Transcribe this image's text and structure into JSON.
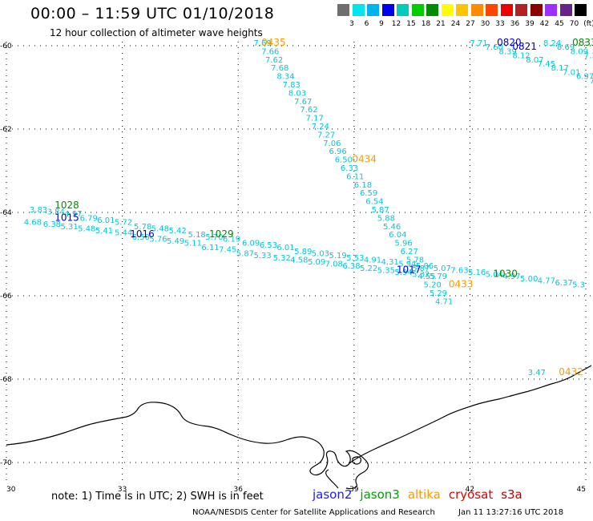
{
  "title": "00:00 – 11:59 UTC 01/10/2018",
  "subtitle": "12 hour collection of altimeter wave heights",
  "legend": {
    "unit": "(ft)",
    "colors": [
      "#6e6e6e",
      "#00e5ee",
      "#00b2ee",
      "#0000ee",
      "#00ccbb",
      "#00cd00",
      "#008b00",
      "#ffff00",
      "#ffc400",
      "#ff8c00",
      "#ff4500",
      "#ee0000",
      "#b22222",
      "#8b0000",
      "#9b30ff",
      "#68228b",
      "#000000"
    ],
    "labels": [
      "3",
      "6",
      "9",
      "12",
      "15",
      "18",
      "21",
      "24",
      "27",
      "30",
      "33",
      "36",
      "39",
      "42",
      "45",
      "70"
    ]
  },
  "map": {
    "lat_labels": [
      "-60",
      "-62",
      "-64",
      "-66",
      "-68",
      "-70"
    ],
    "lon_labels": [
      "30",
      "33",
      "36",
      "39",
      "42",
      "45"
    ]
  },
  "tracks": [
    {
      "satellite": "altika",
      "color": "#00c8dc",
      "points": [
        {
          "lon": 36.4,
          "lat": -60.0,
          "swh": "7.69"
        },
        {
          "lon": 36.6,
          "lat": -60.2,
          "swh": "7.66"
        },
        {
          "lon": 36.7,
          "lat": -60.4,
          "swh": "7.62"
        },
        {
          "lon": 36.85,
          "lat": -60.6,
          "swh": "7.68"
        },
        {
          "lon": 37.0,
          "lat": -60.8,
          "swh": "8.34"
        },
        {
          "lon": 37.15,
          "lat": -61.0,
          "swh": "7.83"
        },
        {
          "lon": 37.3,
          "lat": -61.2,
          "swh": "8.03"
        },
        {
          "lon": 37.45,
          "lat": -61.4,
          "swh": "7.67"
        },
        {
          "lon": 37.6,
          "lat": -61.6,
          "swh": "7.62"
        },
        {
          "lon": 37.75,
          "lat": -61.8,
          "swh": "7.17"
        },
        {
          "lon": 37.9,
          "lat": -62.0,
          "swh": "7.24"
        },
        {
          "lon": 38.05,
          "lat": -62.2,
          "swh": "7.27"
        },
        {
          "lon": 38.2,
          "lat": -62.4,
          "swh": "7.06"
        },
        {
          "lon": 38.35,
          "lat": -62.6,
          "swh": "6.96"
        },
        {
          "lon": 38.5,
          "lat": -62.8,
          "swh": "6.50"
        },
        {
          "lon": 38.65,
          "lat": -63.0,
          "swh": "6.33"
        },
        {
          "lon": 38.8,
          "lat": -63.2,
          "swh": "6.11"
        },
        {
          "lon": 39.0,
          "lat": -63.4,
          "swh": "6.18"
        },
        {
          "lon": 39.15,
          "lat": -63.6,
          "swh": "6.59"
        },
        {
          "lon": 39.3,
          "lat": -63.8,
          "swh": "6.54"
        },
        {
          "lon": 39.45,
          "lat": -64.0,
          "swh": "5.87"
        },
        {
          "lon": 39.6,
          "lat": -64.2,
          "swh": "5.88"
        },
        {
          "lon": 39.75,
          "lat": -64.4,
          "swh": "5.46"
        },
        {
          "lon": 39.9,
          "lat": -64.6,
          "swh": "6.04"
        },
        {
          "lon": 40.05,
          "lat": -64.8,
          "swh": "5.96"
        },
        {
          "lon": 40.2,
          "lat": -65.0,
          "swh": "6.27"
        },
        {
          "lon": 40.35,
          "lat": -65.2,
          "swh": "5.78"
        },
        {
          "lon": 40.5,
          "lat": -65.4,
          "swh": "5.87"
        },
        {
          "lon": 40.65,
          "lat": -65.6,
          "swh": "4.55"
        },
        {
          "lon": 40.8,
          "lat": -65.8,
          "swh": "5.20"
        },
        {
          "lon": 40.95,
          "lat": -66.0,
          "swh": "5.29"
        },
        {
          "lon": 41.1,
          "lat": -66.2,
          "swh": "4.71"
        }
      ],
      "times": [
        {
          "label": "0435",
          "lon": 36.6,
          "lat": -60.0
        },
        {
          "label": "0434",
          "lon": 38.95,
          "lat": -62.8
        },
        {
          "label": "0433",
          "lon": 41.45,
          "lat": -65.8
        }
      ]
    },
    {
      "satellite": "jason3",
      "color": "#00c8dc",
      "points": [
        {
          "lon": 30.6,
          "lat": -64.0,
          "swh": "3.83"
        },
        {
          "lon": 31.05,
          "lat": -64.05,
          "swh": "3.84"
        },
        {
          "lon": 31.5,
          "lat": -64.1,
          "swh": "4.97"
        },
        {
          "lon": 31.9,
          "lat": -64.2,
          "swh": "6.79"
        },
        {
          "lon": 32.35,
          "lat": -64.25,
          "swh": "6.01"
        },
        {
          "lon": 32.8,
          "lat": -64.3,
          "swh": "5.72"
        },
        {
          "lon": 33.3,
          "lat": -64.4,
          "swh": "5.78"
        },
        {
          "lon": 33.75,
          "lat": -64.45,
          "swh": "5.48"
        },
        {
          "lon": 34.2,
          "lat": -64.5,
          "swh": "5.42"
        },
        {
          "lon": 34.7,
          "lat": -64.6,
          "swh": "5.18"
        },
        {
          "lon": 35.15,
          "lat": -64.65,
          "swh": "5.70"
        },
        {
          "lon": 35.6,
          "lat": -64.7,
          "swh": "6.19"
        },
        {
          "lon": 36.1,
          "lat": -64.8,
          "swh": "6.09"
        },
        {
          "lon": 36.55,
          "lat": -64.85,
          "swh": "6.53"
        },
        {
          "lon": 37.0,
          "lat": -64.9,
          "swh": "6.01"
        },
        {
          "lon": 37.45,
          "lat": -65.0,
          "swh": "5.89"
        },
        {
          "lon": 37.9,
          "lat": -65.05,
          "swh": "5.03"
        },
        {
          "lon": 38.35,
          "lat": -65.1,
          "swh": "5.19"
        },
        {
          "lon": 38.8,
          "lat": -65.15,
          "swh": "5.53"
        },
        {
          "lon": 39.25,
          "lat": -65.2,
          "swh": "4.91"
        },
        {
          "lon": 39.7,
          "lat": -65.25,
          "swh": "4.31"
        },
        {
          "lon": 40.15,
          "lat": -65.3,
          "swh": "5.94"
        },
        {
          "lon": 40.6,
          "lat": -65.35,
          "swh": "5.06"
        },
        {
          "lon": 41.05,
          "lat": -65.4,
          "swh": "5.07"
        },
        {
          "lon": 41.5,
          "lat": -65.45,
          "swh": "7.63"
        },
        {
          "lon": 41.95,
          "lat": -65.5,
          "swh": "5.16"
        },
        {
          "lon": 42.4,
          "lat": -65.55,
          "swh": "5.04"
        },
        {
          "lon": 42.85,
          "lat": -65.6,
          "swh": "4.97"
        },
        {
          "lon": 43.3,
          "lat": -65.65,
          "swh": "5.00"
        },
        {
          "lon": 43.75,
          "lat": -65.7,
          "swh": "4.77"
        },
        {
          "lon": 44.2,
          "lat": -65.75,
          "swh": "6.37"
        },
        {
          "lon": 44.65,
          "lat": -65.8,
          "swh": "5.3"
        }
      ],
      "times": [
        {
          "label": "1028",
          "lon": 31.25,
          "lat": -63.9
        },
        {
          "label": "1029",
          "lon": 35.25,
          "lat": -64.6
        },
        {
          "label": "1030",
          "lon": 42.6,
          "lat": -65.55
        }
      ]
    },
    {
      "satellite": "jason2",
      "color": "#00c8dc",
      "points": [
        {
          "lon": 30.45,
          "lat": -64.3,
          "swh": "4.68"
        },
        {
          "lon": 30.95,
          "lat": -64.35,
          "swh": "6.38"
        },
        {
          "lon": 31.4,
          "lat": -64.4,
          "swh": "5.31"
        },
        {
          "lon": 31.85,
          "lat": -64.45,
          "swh": "5.48"
        },
        {
          "lon": 32.3,
          "lat": -64.5,
          "swh": "5.41"
        },
        {
          "lon": 32.8,
          "lat": -64.55,
          "swh": "5.44"
        },
        {
          "lon": 33.25,
          "lat": -64.65,
          "swh": "6.50"
        },
        {
          "lon": 33.7,
          "lat": -64.7,
          "swh": "5.76"
        },
        {
          "lon": 34.15,
          "lat": -64.75,
          "swh": "5.49"
        },
        {
          "lon": 34.6,
          "lat": -64.8,
          "swh": "5.11"
        },
        {
          "lon": 35.05,
          "lat": -64.9,
          "swh": "6.11"
        },
        {
          "lon": 35.5,
          "lat": -64.95,
          "swh": "7.45"
        },
        {
          "lon": 35.95,
          "lat": -65.05,
          "swh": "5.87"
        },
        {
          "lon": 36.4,
          "lat": -65.1,
          "swh": "5.33"
        },
        {
          "lon": 36.9,
          "lat": -65.15,
          "swh": "5.32"
        },
        {
          "lon": 37.35,
          "lat": -65.2,
          "swh": "4.58"
        },
        {
          "lon": 37.8,
          "lat": -65.25,
          "swh": "5.09"
        },
        {
          "lon": 38.25,
          "lat": -65.3,
          "swh": "7.08"
        },
        {
          "lon": 38.7,
          "lat": -65.35,
          "swh": "6.38"
        },
        {
          "lon": 39.15,
          "lat": -65.4,
          "swh": "5.22"
        },
        {
          "lon": 39.6,
          "lat": -65.45,
          "swh": "5.35"
        },
        {
          "lon": 40.05,
          "lat": -65.5,
          "swh": "5.94"
        },
        {
          "lon": 40.5,
          "lat": -65.55,
          "swh": "5.32"
        },
        {
          "lon": 40.95,
          "lat": -65.6,
          "swh": "5.79"
        }
      ],
      "times": [
        {
          "label": "1015",
          "lon": 31.25,
          "lat": -64.2
        },
        {
          "label": "1016",
          "lon": 33.2,
          "lat": -64.6
        },
        {
          "label": "1017",
          "lon": 40.1,
          "lat": -65.45
        }
      ]
    },
    {
      "satellite": "jason2",
      "color": "#00c8dc",
      "points": [
        {
          "lon": 42.0,
          "lat": -60.0,
          "swh": "7.71"
        },
        {
          "lon": 42.4,
          "lat": -60.1,
          "swh": "7.60"
        },
        {
          "lon": 42.75,
          "lat": -60.2,
          "swh": "8.39"
        },
        {
          "lon": 43.1,
          "lat": -60.3,
          "swh": "8.12"
        },
        {
          "lon": 43.45,
          "lat": -60.4,
          "swh": "8.07"
        },
        {
          "lon": 43.75,
          "lat": -60.5,
          "swh": "7.45"
        },
        {
          "lon": 44.1,
          "lat": -60.6,
          "swh": "8.17"
        },
        {
          "lon": 44.4,
          "lat": -60.7,
          "swh": "7.01"
        }
      ],
      "times": [
        {
          "label": "0820",
          "lon": 42.7,
          "lat": -60.0
        },
        {
          "label": "0821",
          "lon": 43.1,
          "lat": -60.1
        }
      ]
    },
    {
      "satellite": "jason3",
      "color": "#00c8dc",
      "points": [
        {
          "lon": 43.9,
          "lat": -60.0,
          "swh": "8.24"
        },
        {
          "lon": 44.25,
          "lat": -60.1,
          "swh": "8.69"
        },
        {
          "lon": 44.6,
          "lat": -60.2,
          "swh": "8.09"
        },
        {
          "lon": 44.95,
          "lat": -60.3,
          "swh": "7.34"
        },
        {
          "lon": 44.75,
          "lat": -60.8,
          "swh": "6.97"
        },
        {
          "lon": 45.1,
          "lat": -60.9,
          "swh": "7.47"
        },
        {
          "lon": 45.3,
          "lat": -61.0,
          "swh": "6"
        }
      ],
      "times": [
        {
          "label": "0833",
          "lon": 44.65,
          "lat": -60.0
        }
      ]
    },
    {
      "satellite": "altika",
      "color": "#00c8dc",
      "points": [
        {
          "lon": 43.5,
          "lat": -67.9,
          "swh": "3.47"
        }
      ],
      "times": [
        {
          "label": "0432",
          "lon": 44.3,
          "lat": -67.9
        }
      ]
    }
  ],
  "time_colors": {
    "altika": "#ff9900",
    "jason3": "#008b00",
    "jason2": "#0000cc"
  },
  "note": "note: 1) Time is in UTC; 2) SWH is in feet",
  "satellites": [
    {
      "name": "jason2",
      "color": "#1a1aff"
    },
    {
      "name": "jason3",
      "color": "#00a000"
    },
    {
      "name": "altika",
      "color": "#ff9900"
    },
    {
      "name": "cryosat",
      "color": "#e00000"
    },
    {
      "name": "s3a",
      "color": "#c00000"
    }
  ],
  "footer": {
    "agency": "NOAA/NESDIS Center for Satellite Applications and Research",
    "timestamp": "Jan 11 13:27:16 UTC 2018"
  }
}
